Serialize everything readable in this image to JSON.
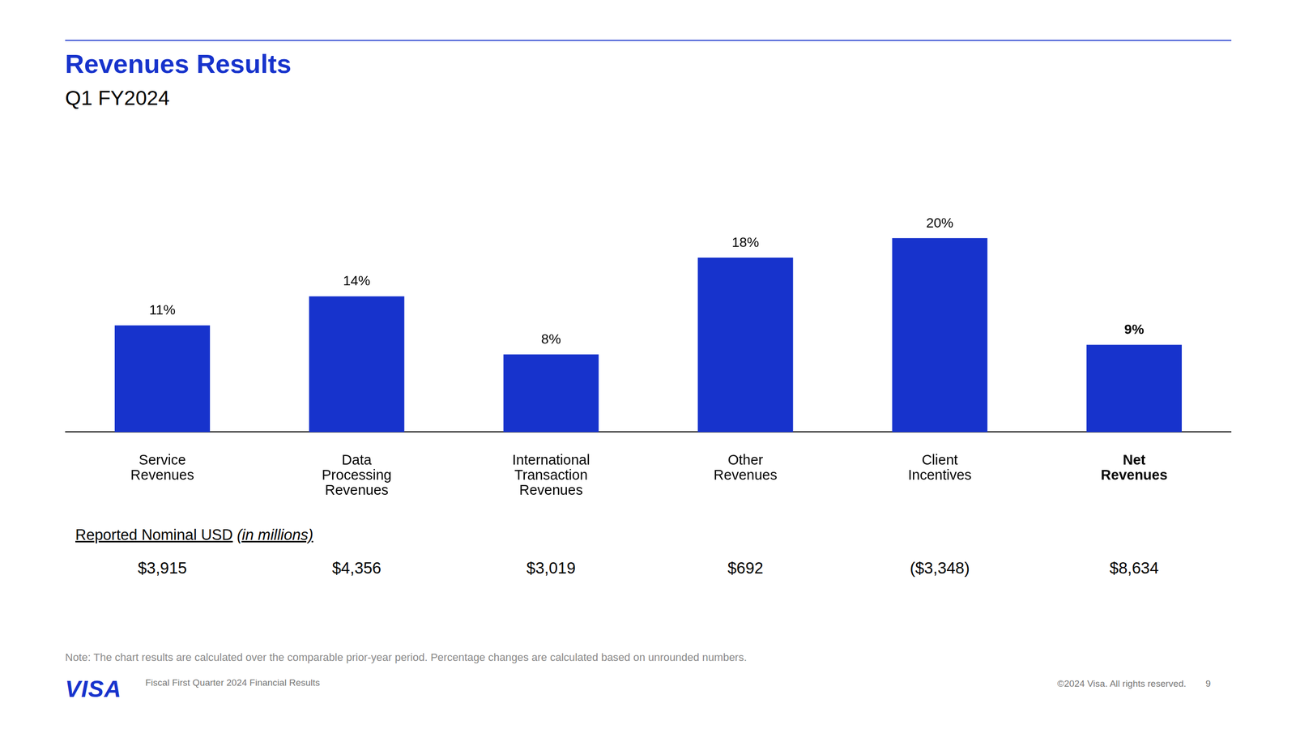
{
  "header": {
    "title": "Revenues Results",
    "subtitle": "Q1 FY2024"
  },
  "chart_data": {
    "type": "bar",
    "categories": [
      "Service Revenues",
      "Data Processing Revenues",
      "International Transaction Revenues",
      "Other Revenues",
      "Client Incentives",
      "Net Revenues"
    ],
    "values": [
      11,
      14,
      8,
      18,
      20,
      9
    ],
    "value_labels": [
      "11%",
      "14%",
      "8%",
      "18%",
      "20%",
      "9%"
    ],
    "color": "#1733cc",
    "ylim": [
      0,
      20
    ],
    "grid": false,
    "data_labels": true,
    "tick_labels": "x"
  },
  "table": {
    "title": "Reported Nominal USD",
    "unit": "(in millions)",
    "values": [
      3915,
      4356,
      3019,
      692,
      -3348,
      8634
    ],
    "value_labels": [
      "$3,915",
      "$4,356",
      "$3,019",
      "$692",
      "($3,348)",
      "$8,634"
    ]
  },
  "note": "Note: The chart results are calculated over the comparable prior-year period. Percentage changes are calculated based on unrounded numbers.",
  "footer": {
    "logo": "VISA",
    "text": "Fiscal First Quarter 2024 Financial Results",
    "copyright": "©2024 Visa. All rights reserved.",
    "page": 9
  }
}
